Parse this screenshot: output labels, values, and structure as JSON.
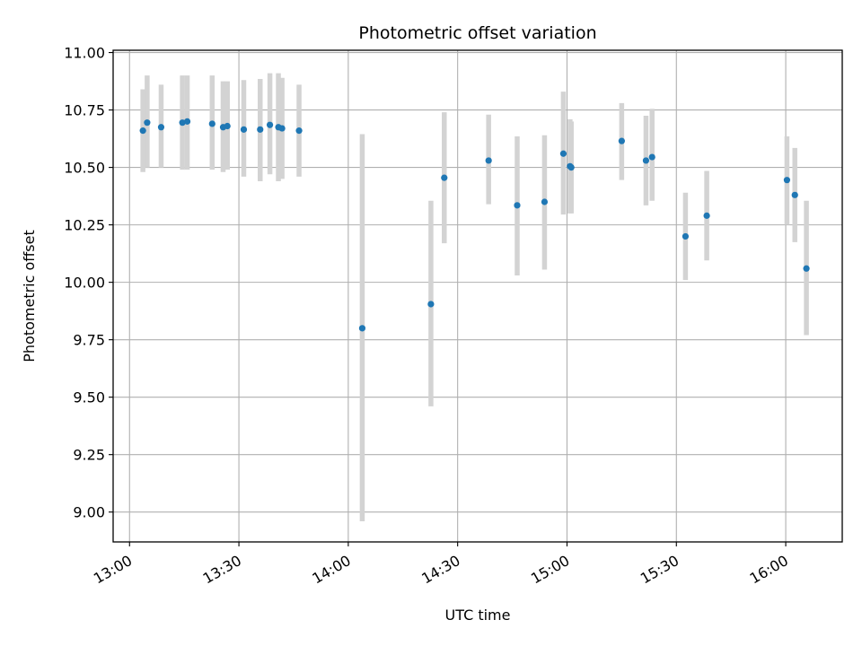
{
  "chart_data": {
    "type": "scatter",
    "title": "Photometric offset variation",
    "xlabel": "UTC time",
    "ylabel": "Photometric offset",
    "x_ticks": [
      "13:00",
      "13:30",
      "14:00",
      "14:30",
      "15:00",
      "15:30",
      "16:00"
    ],
    "y_ticks": [
      "9.00",
      "9.25",
      "9.50",
      "9.75",
      "10.00",
      "10.25",
      "10.50",
      "10.75",
      "11.00"
    ],
    "xlim": [
      "12:55:30",
      "16:15:30"
    ],
    "ylim": [
      8.87,
      11.01
    ],
    "grid": true,
    "legend": "none",
    "colors": {
      "points": "#1f77b4",
      "errorbars": "#d3d3d3",
      "grid": "#b0b0b0"
    },
    "series": [
      {
        "x": [
          "13:03:40",
          "13:04:50",
          "13:08:40",
          "13:14:30",
          "13:15:50",
          "13:22:40",
          "13:25:40",
          "13:26:50",
          "13:31:20",
          "13:35:50",
          "13:38:30",
          "13:40:50",
          "13:41:50",
          "13:46:30",
          "14:03:50",
          "14:22:40",
          "14:26:20",
          "14:38:30",
          "14:46:20",
          "14:53:50",
          "14:59:00",
          "15:00:50",
          "15:01:10",
          "15:15:00",
          "15:21:40",
          "15:23:20",
          "15:32:30",
          "15:38:20",
          "16:00:20",
          "16:02:30",
          "16:05:40"
        ],
        "y": [
          10.66,
          10.695,
          10.675,
          10.695,
          10.7,
          10.69,
          10.675,
          10.68,
          10.665,
          10.665,
          10.685,
          10.675,
          10.67,
          10.66,
          9.8,
          9.905,
          10.455,
          10.53,
          10.335,
          10.35,
          10.56,
          10.505,
          10.5,
          10.615,
          10.53,
          10.545,
          10.2,
          10.29,
          10.445,
          10.38,
          10.06
        ],
        "err_low": [
          10.48,
          10.5,
          10.5,
          10.49,
          10.49,
          10.49,
          10.48,
          10.49,
          10.46,
          10.44,
          10.47,
          10.44,
          10.45,
          10.46,
          8.96,
          9.46,
          10.17,
          10.34,
          10.03,
          10.055,
          10.295,
          10.3,
          10.3,
          10.445,
          10.335,
          10.355,
          10.01,
          10.095,
          10.25,
          10.175,
          9.77
        ],
        "err_high": [
          10.84,
          10.9,
          10.86,
          10.9,
          10.9,
          10.9,
          10.875,
          10.875,
          10.88,
          10.885,
          10.91,
          10.91,
          10.89,
          10.86,
          10.645,
          10.355,
          10.74,
          10.73,
          10.635,
          10.64,
          10.83,
          10.71,
          10.7,
          10.78,
          10.725,
          10.755,
          10.39,
          10.485,
          10.635,
          10.585,
          10.355
        ]
      }
    ]
  }
}
